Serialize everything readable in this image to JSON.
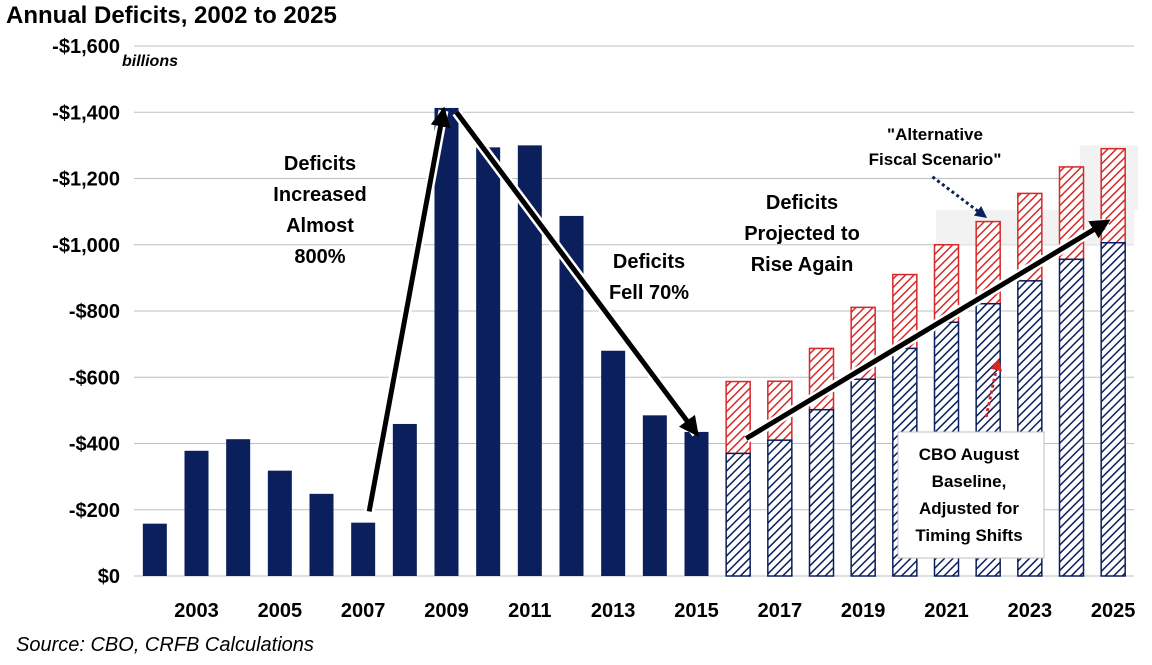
{
  "title": "Annual Deficits, 2002 to 2025",
  "source": "Source: CBO, CRFB Calculations",
  "colors": {
    "actual": "#0a1f5c",
    "baseline": "#0a1f5c",
    "alternative": "#d62828",
    "arrow": "#000000"
  },
  "chart_data": {
    "type": "bar",
    "unit_label": "billions",
    "x": [
      2002,
      2003,
      2004,
      2005,
      2006,
      2007,
      2008,
      2009,
      2010,
      2011,
      2012,
      2013,
      2014,
      2015,
      2016,
      2017,
      2018,
      2019,
      2020,
      2021,
      2022,
      2023,
      2024,
      2025
    ],
    "x_tick_labels": [
      "2003",
      "2005",
      "2007",
      "2009",
      "2011",
      "2013",
      "2015",
      "2017",
      "2019",
      "2021",
      "2023",
      "2025"
    ],
    "y_tick_values": [
      0,
      200,
      400,
      600,
      800,
      1000,
      1200,
      1400,
      1600
    ],
    "y_tick_labels": [
      "$0",
      "-$200",
      "-$400",
      "-$600",
      "-$800",
      "-$1,000",
      "-$1,200",
      "-$1,400",
      "-$1,600"
    ],
    "ylim": [
      0,
      1600
    ],
    "grid": true,
    "series": [
      {
        "values": [
          158,
          378,
          413,
          318,
          248,
          161,
          459,
          1413,
          1294,
          1300,
          1087,
          680,
          485,
          435,
          null,
          null,
          null,
          null,
          null,
          null,
          null,
          null,
          null,
          null
        ]
      },
      {
        "name": "CBO August Baseline, Adjusted for Timing Shifts",
        "values": [
          null,
          null,
          null,
          null,
          null,
          null,
          null,
          null,
          null,
          null,
          null,
          null,
          null,
          null,
          370,
          410,
          502,
          594,
          687,
          766,
          822,
          891,
          956,
          1006
        ]
      },
      {
        "name": "Alternative Fiscal Scenario",
        "values": [
          null,
          null,
          null,
          null,
          null,
          null,
          null,
          null,
          null,
          null,
          null,
          null,
          null,
          null,
          587,
          588,
          687,
          811,
          910,
          1000,
          1070,
          1155,
          1235,
          1290
        ]
      }
    ],
    "annotations": [
      {
        "id": "increase",
        "lines": [
          "Deficits",
          "Increased",
          "Almost",
          "800%"
        ]
      },
      {
        "id": "fell",
        "lines": [
          "Deficits",
          "Fell 70%"
        ]
      },
      {
        "id": "rise",
        "lines": [
          "Deficits",
          "Projected to",
          "Rise Again"
        ]
      },
      {
        "id": "alt",
        "lines": [
          "\"Alternative",
          "Fiscal Scenario\""
        ]
      },
      {
        "id": "baseline",
        "lines": [
          "CBO August",
          "Baseline,",
          "Adjusted for",
          "Timing Shifts"
        ]
      }
    ]
  }
}
